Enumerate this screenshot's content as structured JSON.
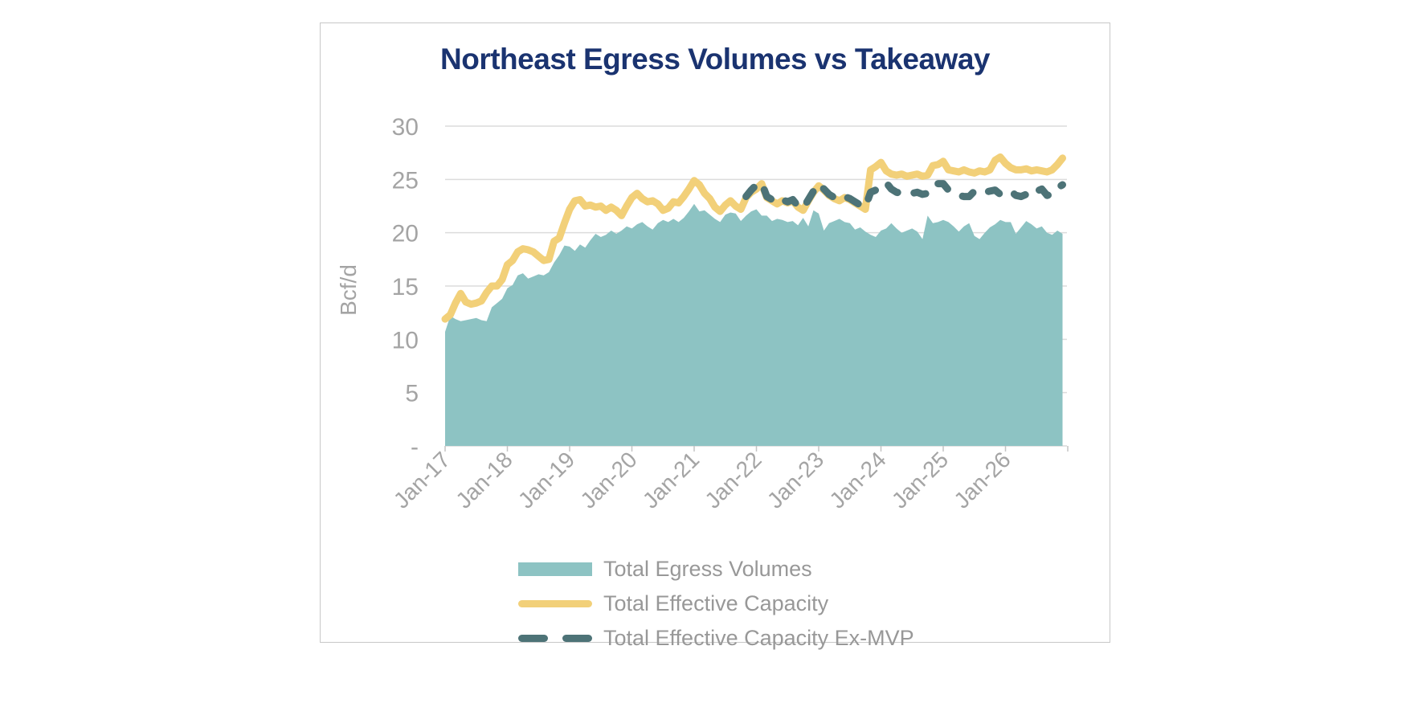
{
  "chart_data": {
    "type": "area",
    "title": "Northeast Egress Volumes vs Takeaway",
    "ylabel": "Bcf/d",
    "ylim": [
      0,
      30
    ],
    "y_ticks": [
      {
        "label": "30",
        "value": 30
      },
      {
        "label": "25",
        "value": 25
      },
      {
        "label": "20",
        "value": 20
      },
      {
        "label": "15",
        "value": 15
      },
      {
        "label": "10",
        "value": 10
      },
      {
        "label": "5",
        "value": 5
      },
      {
        "label": "-",
        "value": 0
      }
    ],
    "x_tick_labels": [
      "Jan-17",
      "Jan-18",
      "Jan-19",
      "Jan-20",
      "Jan-21",
      "Jan-22",
      "Jan-23",
      "Jan-24",
      "Jan-25",
      "Jan-26"
    ],
    "x_unit": "month",
    "x_range_months": 120,
    "grid": true,
    "legend_position": "bottom",
    "series": [
      {
        "name": "Total Egress Volumes",
        "type": "area",
        "color": "#8dc3c3",
        "start_month": 0,
        "values": [
          10.7,
          12.2,
          11.9,
          11.7,
          11.8,
          11.9,
          12.0,
          11.8,
          11.7,
          13.0,
          13.4,
          13.8,
          14.8,
          15.1,
          16.0,
          16.2,
          15.7,
          15.9,
          16.1,
          16.0,
          16.3,
          17.2,
          17.9,
          18.8,
          18.7,
          18.3,
          18.9,
          18.6,
          19.3,
          19.9,
          19.6,
          19.8,
          20.2,
          19.9,
          20.2,
          20.6,
          20.4,
          20.8,
          21.0,
          20.6,
          20.3,
          20.9,
          21.2,
          21.0,
          21.3,
          21.0,
          21.4,
          22.0,
          22.7,
          22.0,
          22.1,
          21.7,
          21.3,
          21.0,
          21.7,
          21.9,
          21.8,
          21.1,
          21.6,
          22.0,
          22.2,
          21.6,
          21.6,
          21.1,
          21.3,
          21.2,
          21.0,
          21.1,
          20.7,
          21.4,
          20.6,
          22.1,
          21.8,
          20.2,
          20.9,
          21.1,
          21.3,
          21.0,
          20.9,
          20.3,
          20.5,
          20.1,
          19.8,
          19.6,
          20.2,
          20.4,
          20.9,
          20.4,
          20.0,
          20.2,
          20.4,
          20.1,
          19.4,
          21.6,
          20.9,
          21.0,
          21.2,
          21.0,
          20.6,
          20.1,
          20.6,
          20.9,
          19.7,
          19.4,
          20.0,
          20.5,
          20.8,
          21.2,
          21.0,
          21.0,
          19.9,
          20.5,
          21.1,
          20.8,
          20.4,
          20.6,
          20.0,
          19.8,
          20.2,
          19.9
        ]
      },
      {
        "name": "Total Effective Capacity",
        "type": "line",
        "color": "#f2d079",
        "start_month": 0,
        "values": [
          11.9,
          12.3,
          13.4,
          14.3,
          13.5,
          13.3,
          13.4,
          13.6,
          14.4,
          15.0,
          15.0,
          15.6,
          17.0,
          17.4,
          18.2,
          18.5,
          18.4,
          18.2,
          17.8,
          17.4,
          17.5,
          19.2,
          19.5,
          20.9,
          22.2,
          23.0,
          23.1,
          22.5,
          22.6,
          22.4,
          22.5,
          22.1,
          22.4,
          22.1,
          21.6,
          22.5,
          23.3,
          23.7,
          23.2,
          22.9,
          23.0,
          22.7,
          22.1,
          22.3,
          22.9,
          22.8,
          23.4,
          24.1,
          24.9,
          24.5,
          23.7,
          23.2,
          22.4,
          22.0,
          22.6,
          23.0,
          22.5,
          22.2,
          23.3,
          23.8,
          24.1,
          24.6,
          23.3,
          23.0,
          22.7,
          23.0,
          22.8,
          23.0,
          22.4,
          22.1,
          23.0,
          23.8,
          24.4,
          24.0,
          23.5,
          23.2,
          23.0,
          23.3,
          23.1,
          22.8,
          22.5,
          22.2,
          25.9,
          26.2,
          26.6,
          25.8,
          25.5,
          25.4,
          25.5,
          25.3,
          25.4,
          25.5,
          25.3,
          25.4,
          26.3,
          26.4,
          26.7,
          25.9,
          25.8,
          25.7,
          25.9,
          25.7,
          25.6,
          25.8,
          25.7,
          25.9,
          26.8,
          27.1,
          26.5,
          26.1,
          25.9,
          25.9,
          26.0,
          25.8,
          25.9,
          25.8,
          25.7,
          25.9,
          26.4,
          27.0
        ]
      },
      {
        "name": "Total Effective Capacity Ex-MVP",
        "type": "dashed-line",
        "color": "#4d7377",
        "start_month": 58,
        "values": [
          23.4,
          24.0,
          24.5,
          24.7,
          23.4,
          23.1,
          22.8,
          23.1,
          22.9,
          23.1,
          22.5,
          22.3,
          23.1,
          23.9,
          24.6,
          24.1,
          23.6,
          23.3,
          23.1,
          23.4,
          23.2,
          22.9,
          22.6,
          22.4,
          23.8,
          24.0,
          24.5,
          24.7,
          24.1,
          23.8,
          23.7,
          23.6,
          23.7,
          23.8,
          23.6,
          23.7,
          24.4,
          24.6,
          24.6,
          24.0,
          23.7,
          23.5,
          23.4,
          23.4,
          23.9,
          24.0,
          23.8,
          23.9,
          24.0,
          23.6,
          23.8,
          23.9,
          23.5,
          23.4,
          23.6,
          23.4,
          23.9,
          24.1,
          23.5,
          23.6,
          24.2,
          24.5
        ]
      }
    ]
  },
  "colors": {
    "title": "#1a3370",
    "axis_text": "#a4a4a4",
    "gridline": "#dcdcdc",
    "baseline": "#d9d9d9",
    "tick": "#c4c4c4",
    "card_border": "#c8c8c8"
  }
}
